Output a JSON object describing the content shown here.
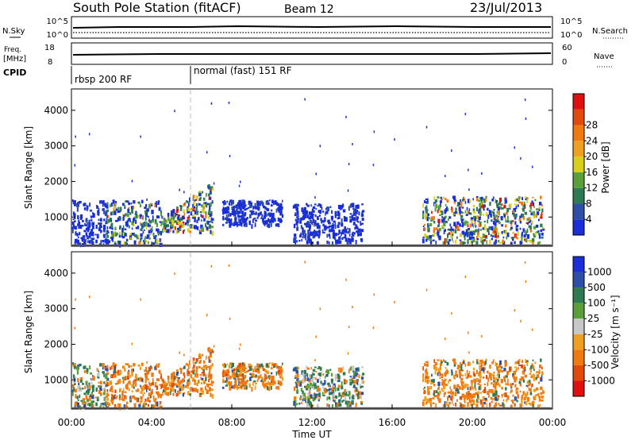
{
  "header": {
    "title": "South Pole Station (fitACF)",
    "beam": "Beam 12",
    "date": "23/Jul/2013"
  },
  "sky_panel": {
    "left_label": "N.Sky",
    "left_ticks": [
      "10^5",
      "10^0"
    ],
    "right_label": "N.Search",
    "right_ticks": [
      "10^5",
      "10^0"
    ]
  },
  "freq_panel": {
    "left_label_1": "Freq.",
    "left_label_2": "[MHz]",
    "left_ticks": [
      "18",
      "8"
    ],
    "right_label": "Nave",
    "right_ticks": [
      "60",
      "0"
    ]
  },
  "cpid_panel": {
    "label": "CPID",
    "programs": [
      {
        "name": "rbsp 200 RF",
        "start_hour": 0
      },
      {
        "name": "normal (fast) 151 RF",
        "start_hour": 6
      }
    ]
  },
  "colors": {
    "power_scale": [
      "#1a2fd8",
      "#2e4fa8",
      "#2f7a52",
      "#5aa03a",
      "#d8cf1a",
      "#f0a020",
      "#f07a10",
      "#e04a0a",
      "#e01010"
    ],
    "velocity_scale": [
      "#1a2fd8",
      "#2e4fa8",
      "#2f7a52",
      "#5aa03a",
      "#c8c8c8",
      "#f0a020",
      "#f07a10",
      "#e04a0a",
      "#e01010"
    ]
  },
  "chart_data": [
    {
      "type": "heatmap",
      "name": "power",
      "xlabel": "",
      "ylabel": "Slant Range [km]",
      "xlim": [
        0,
        24
      ],
      "ylim": [
        180,
        4600
      ],
      "yticks": [
        "1000",
        "2000",
        "3000",
        "4000"
      ],
      "colorbar": {
        "label": "Power [dB]",
        "ticks": [
          "4",
          "8",
          "12",
          "16",
          "20",
          "24",
          "28"
        ]
      },
      "echo_regions": [
        {
          "x_start": 0.0,
          "x_end": 1.8,
          "y_start": 250,
          "y_end": 1500,
          "level": "weak"
        },
        {
          "x_start": 1.7,
          "x_end": 4.5,
          "y_start": 250,
          "y_end": 1500,
          "level": "moderate"
        },
        {
          "x_start": 4.5,
          "x_end": 7.0,
          "y_start": 600,
          "y_end": 2000,
          "level": "strong"
        },
        {
          "x_start": 7.5,
          "x_end": 10.5,
          "y_start": 800,
          "y_end": 1500,
          "level": "weak"
        },
        {
          "x_start": 11.0,
          "x_end": 14.5,
          "y_start": 300,
          "y_end": 1400,
          "level": "weak"
        },
        {
          "x_start": 17.5,
          "x_end": 23.5,
          "y_start": 300,
          "y_end": 1600,
          "level": "strong"
        }
      ]
    },
    {
      "type": "heatmap",
      "name": "velocity",
      "xlabel": "Time UT",
      "ylabel": "Slant Range [km]",
      "xlim": [
        0,
        24
      ],
      "ylim": [
        180,
        4600
      ],
      "xticks": [
        "00:00",
        "04:00",
        "08:00",
        "12:00",
        "16:00",
        "20:00",
        "00:00"
      ],
      "yticks": [
        "1000",
        "2000",
        "3000",
        "4000"
      ],
      "colorbar": {
        "label": "Velocity [m s⁻¹]",
        "ticks": [
          "1000",
          "500",
          "100",
          "25",
          "-25",
          "-100",
          "-500",
          "-1000"
        ]
      },
      "echo_regions": [
        {
          "x_start": 0.0,
          "x_end": 1.8,
          "y_start": 250,
          "y_end": 1500,
          "level": "mixed"
        },
        {
          "x_start": 1.7,
          "x_end": 4.5,
          "y_start": 250,
          "y_end": 1500,
          "level": "away"
        },
        {
          "x_start": 4.5,
          "x_end": 7.0,
          "y_start": 600,
          "y_end": 2000,
          "level": "away"
        },
        {
          "x_start": 7.5,
          "x_end": 10.5,
          "y_start": 800,
          "y_end": 1500,
          "level": "away"
        },
        {
          "x_start": 11.0,
          "x_end": 14.5,
          "y_start": 300,
          "y_end": 1400,
          "level": "mixed"
        },
        {
          "x_start": 17.5,
          "x_end": 23.5,
          "y_start": 300,
          "y_end": 1600,
          "level": "away"
        }
      ]
    }
  ]
}
